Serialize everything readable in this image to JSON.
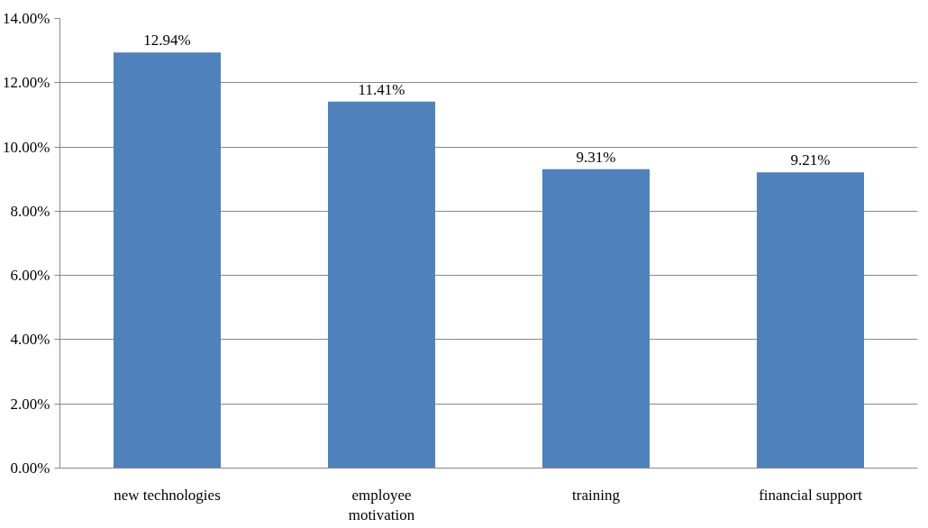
{
  "chart_data": {
    "type": "bar",
    "categories": [
      "new technologies",
      "employee\nmotivation",
      "training",
      "financial support"
    ],
    "values": [
      12.94,
      11.41,
      9.31,
      9.21
    ],
    "value_labels": [
      "12.94%",
      "11.41%",
      "9.31%",
      "9.21%"
    ],
    "color": "#4f81bd",
    "ylim": [
      0,
      14
    ],
    "yticks": [
      {
        "value": 0,
        "label": "0.00%"
      },
      {
        "value": 2,
        "label": "2.00%"
      },
      {
        "value": 4,
        "label": "4.00%"
      },
      {
        "value": 6,
        "label": "6.00%"
      },
      {
        "value": 8,
        "label": "8.00%"
      },
      {
        "value": 10,
        "label": "10.00%"
      },
      {
        "value": 12,
        "label": "12.00%"
      },
      {
        "value": 14,
        "label": "14.00%"
      }
    ],
    "grid": "y"
  }
}
